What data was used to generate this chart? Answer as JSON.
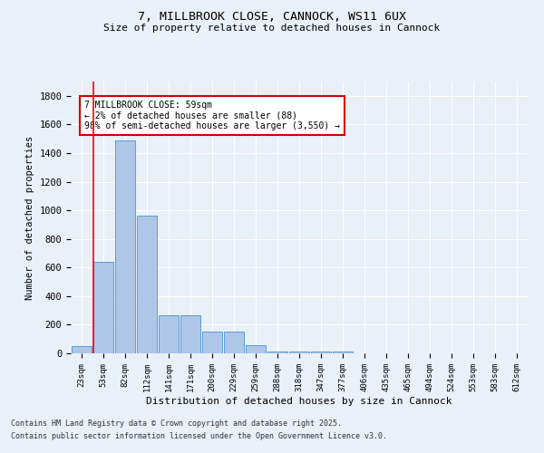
{
  "title_line1": "7, MILLBROOK CLOSE, CANNOCK, WS11 6UX",
  "title_line2": "Size of property relative to detached houses in Cannock",
  "xlabel": "Distribution of detached houses by size in Cannock",
  "ylabel": "Number of detached properties",
  "footnote_line1": "Contains HM Land Registry data © Crown copyright and database right 2025.",
  "footnote_line2": "Contains public sector information licensed under the Open Government Licence v3.0.",
  "categories": [
    "23sqm",
    "53sqm",
    "82sqm",
    "112sqm",
    "141sqm",
    "171sqm",
    "200sqm",
    "229sqm",
    "259sqm",
    "288sqm",
    "318sqm",
    "347sqm",
    "377sqm",
    "406sqm",
    "435sqm",
    "465sqm",
    "494sqm",
    "524sqm",
    "553sqm",
    "583sqm",
    "612sqm"
  ],
  "values": [
    50,
    640,
    1490,
    960,
    265,
    265,
    155,
    155,
    60,
    15,
    15,
    15,
    15,
    0,
    0,
    0,
    0,
    0,
    0,
    0,
    0
  ],
  "bar_color": "#aec6e8",
  "bar_edge_color": "#5a9fd4",
  "background_color": "#e8f0f8",
  "grid_color": "#ffffff",
  "red_line_x": 1,
  "red_line_color": "#ff0000",
  "annotation_text": "7 MILLBROOK CLOSE: 59sqm\n← 2% of detached houses are smaller (88)\n98% of semi-detached houses are larger (3,550) →",
  "annotation_box_edge": "#cc0000",
  "annotation_box_face": "#ffffff",
  "ylim": [
    0,
    1900
  ],
  "yticks": [
    0,
    200,
    400,
    600,
    800,
    1000,
    1200,
    1400,
    1600,
    1800
  ]
}
